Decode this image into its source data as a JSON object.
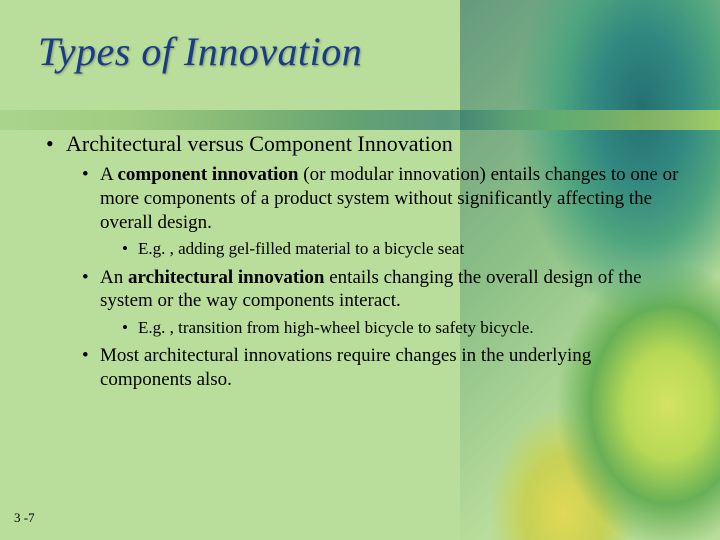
{
  "title": "Types of Innovation",
  "heading": "Architectural versus Component Innovation",
  "bullets": {
    "component": {
      "prefix": "A ",
      "bold": "component innovation",
      "rest": " (or modular innovation) entails changes to one or more components of a product system without significantly affecting the overall design.",
      "example": "E.g. , adding gel-filled material to a bicycle seat"
    },
    "architectural": {
      "prefix": "An ",
      "bold": "architectural innovation",
      "rest": " entails changing the overall design of the system or the way components interact.",
      "example": "E.g. , transition from high-wheel bicycle to safety bicycle."
    },
    "most": "Most architectural innovations require changes in the underlying components also."
  },
  "page_number": "3 -7",
  "colors": {
    "title": "#1a3a8a",
    "background": "#b9dd9b"
  },
  "fonts": {
    "title_size": 40,
    "heading_size": 22,
    "body_size": 19,
    "example_size": 17
  }
}
